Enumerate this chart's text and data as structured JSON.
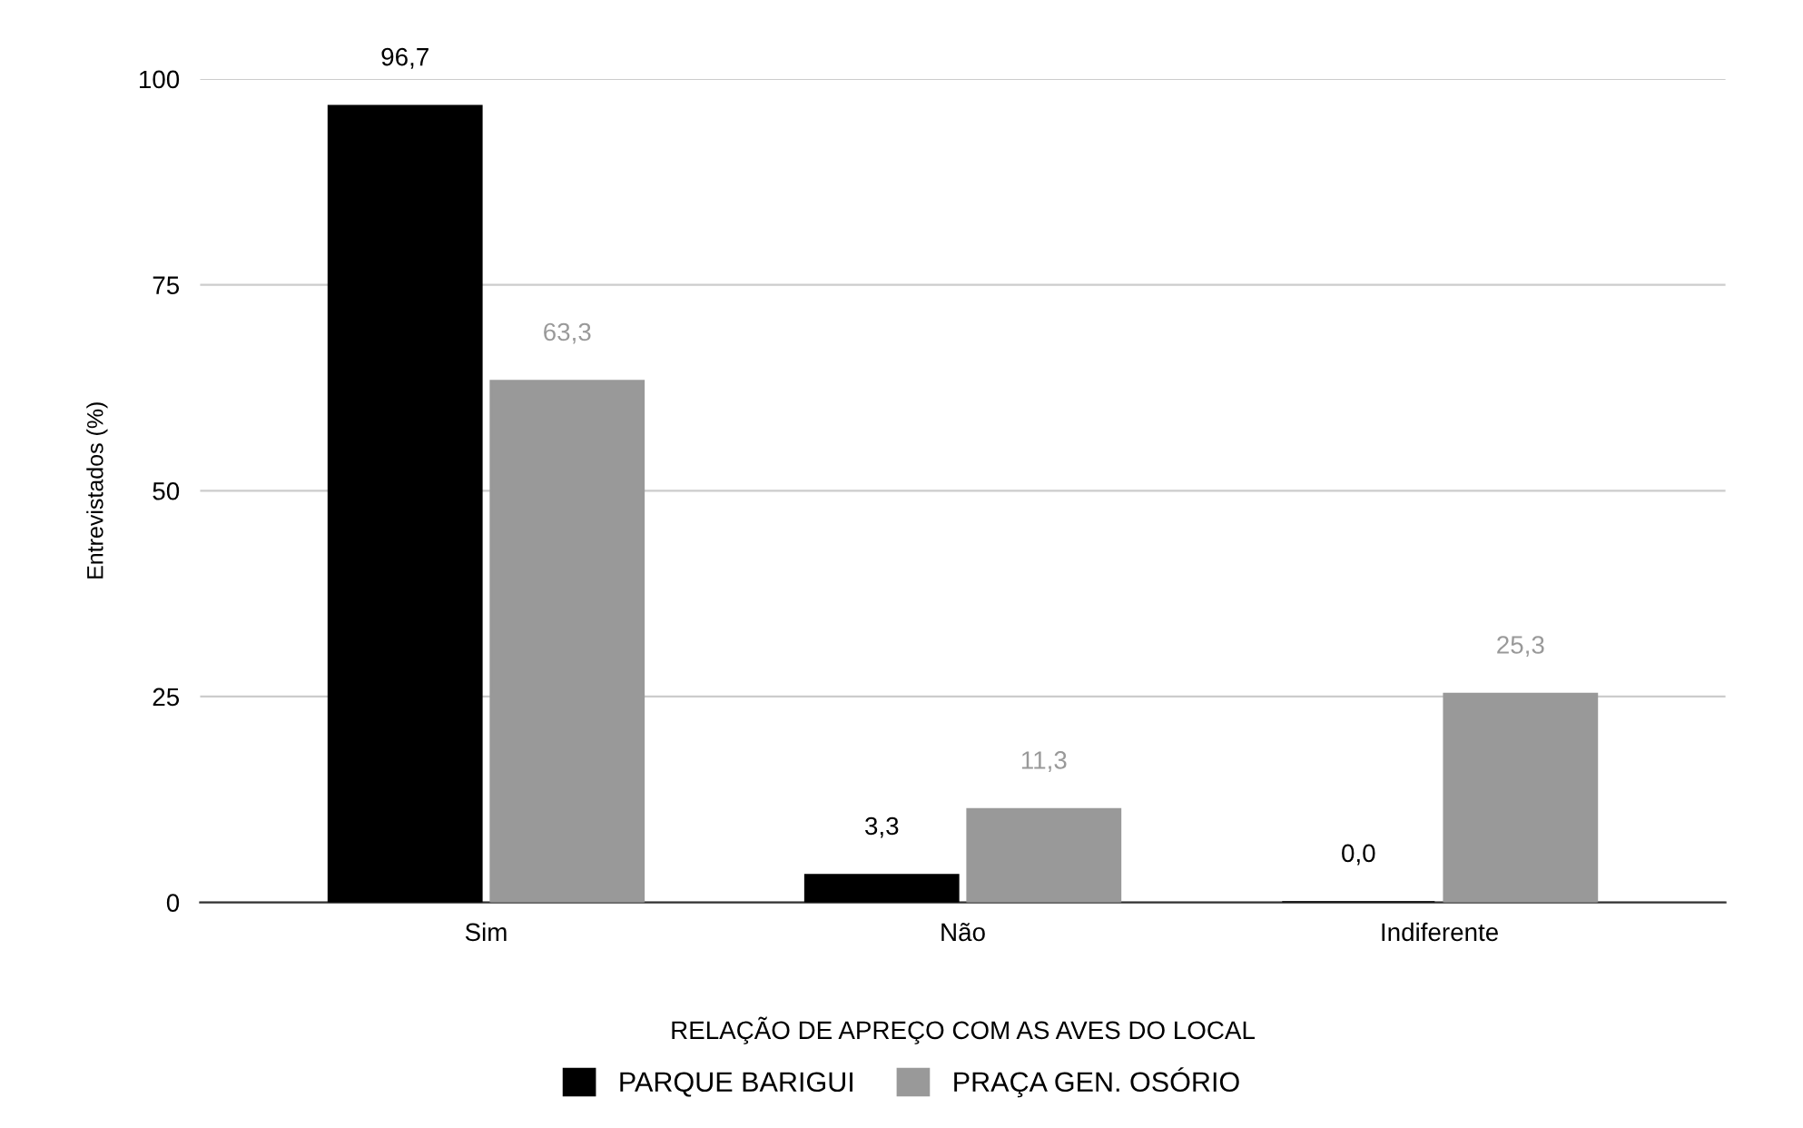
{
  "chart_data": {
    "type": "bar",
    "categories": [
      "Sim",
      "Não",
      "Indiferente"
    ],
    "xlabel": "RELAÇÃO DE APREÇO COM AS AVES DO LOCAL",
    "ylabel": "Entrevistados (%)",
    "series": [
      {
        "name": "PARQUE BARIGUI",
        "color": "#000000",
        "values": [
          96.7,
          3.3,
          0.0
        ],
        "value_labels": [
          "96,7",
          "3,3",
          "0,0"
        ]
      },
      {
        "name": "PRAÇA GEN. OSÓRIO",
        "color": "#999999",
        "values": [
          63.3,
          11.3,
          25.3
        ],
        "value_labels": [
          "63,3",
          "11,3",
          "25,3"
        ]
      }
    ],
    "ylim": [
      0,
      100
    ],
    "yticks": [
      0,
      25,
      50,
      75,
      100
    ],
    "grid": "y",
    "legend": "bottom"
  }
}
